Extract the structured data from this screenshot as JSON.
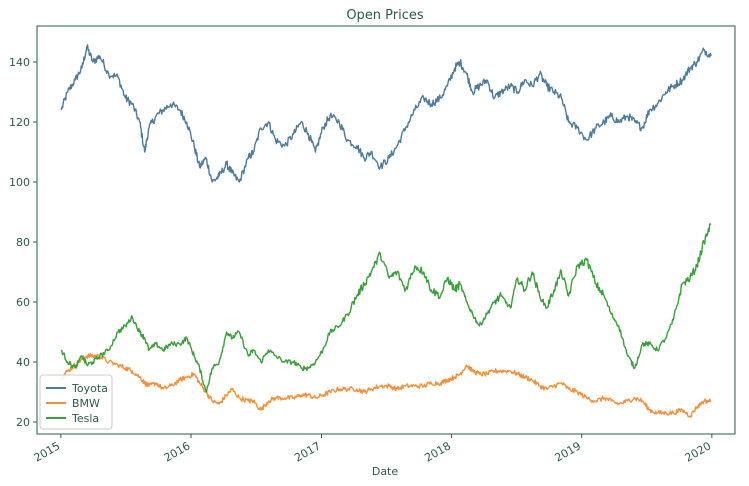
{
  "chart_data": {
    "type": "line",
    "title": "Open Prices",
    "xlabel": "Date",
    "ylabel": "",
    "xlim": [
      "2014-10-26",
      "2020-03-06"
    ],
    "ylim": [
      16,
      152
    ],
    "x_ticks": [
      "2015",
      "2016",
      "2017",
      "2018",
      "2019",
      "2020"
    ],
    "y_ticks": [
      20,
      40,
      60,
      80,
      100,
      120,
      140
    ],
    "grid": false,
    "legend_position": "lower-left",
    "text_color": "#2e5b4b",
    "series": [
      {
        "name": "Toyota",
        "color": "#4e7a9b",
        "x": [
          "2015-01-02",
          "2015-01-20",
          "2015-02-10",
          "2015-03-01",
          "2015-03-15",
          "2015-04-01",
          "2015-04-20",
          "2015-05-15",
          "2015-06-10",
          "2015-07-01",
          "2015-07-20",
          "2015-08-10",
          "2015-08-24",
          "2015-09-05",
          "2015-09-25",
          "2015-10-15",
          "2015-11-05",
          "2015-12-01",
          "2015-12-20",
          "2016-01-10",
          "2016-01-25",
          "2016-02-12",
          "2016-03-01",
          "2016-03-20",
          "2016-04-10",
          "2016-04-25",
          "2016-05-15",
          "2016-06-10",
          "2016-06-24",
          "2016-07-15",
          "2016-08-05",
          "2016-08-25",
          "2016-09-20",
          "2016-10-15",
          "2016-11-05",
          "2016-11-25",
          "2016-12-15",
          "2017-01-05",
          "2017-01-25",
          "2017-02-20",
          "2017-03-15",
          "2017-04-10",
          "2017-05-01",
          "2017-05-20",
          "2017-06-15",
          "2017-07-10",
          "2017-08-01",
          "2017-08-25",
          "2017-09-20",
          "2017-10-15",
          "2017-11-05",
          "2017-12-01",
          "2017-12-20",
          "2018-01-10",
          "2018-01-25",
          "2018-02-12",
          "2018-03-01",
          "2018-03-20",
          "2018-04-10",
          "2018-05-01",
          "2018-05-20",
          "2018-06-15",
          "2018-07-05",
          "2018-07-25",
          "2018-08-15",
          "2018-09-05",
          "2018-09-25",
          "2018-10-15",
          "2018-11-05",
          "2018-11-25",
          "2018-12-20",
          "2019-01-15",
          "2019-02-10",
          "2019-03-05",
          "2019-03-25",
          "2019-04-15",
          "2019-05-10",
          "2019-05-30",
          "2019-06-20",
          "2019-07-10",
          "2019-08-01",
          "2019-08-25",
          "2019-09-15",
          "2019-10-10",
          "2019-11-01",
          "2019-11-20",
          "2019-12-10",
          "2019-12-30"
        ],
        "values": [
          124,
          130,
          134,
          138,
          145,
          140,
          142,
          136,
          135,
          128,
          126,
          120,
          110,
          118,
          122,
          124,
          126,
          124,
          120,
          112,
          105,
          108,
          100,
          102,
          106,
          103,
          100,
          108,
          110,
          118,
          120,
          114,
          112,
          116,
          120,
          116,
          110,
          118,
          122,
          120,
          114,
          112,
          108,
          110,
          105,
          108,
          112,
          118,
          124,
          128,
          126,
          128,
          132,
          138,
          140,
          136,
          130,
          132,
          134,
          128,
          130,
          132,
          130,
          134,
          132,
          136,
          132,
          130,
          128,
          120,
          118,
          114,
          118,
          120,
          122,
          120,
          122,
          120,
          118,
          124,
          126,
          130,
          132,
          134,
          138,
          140,
          144,
          142
        ]
      },
      {
        "name": "BMW",
        "color": "#f0913d",
        "x": [
          "2015-01-02",
          "2015-01-20",
          "2015-02-10",
          "2015-03-01",
          "2015-03-15",
          "2015-04-01",
          "2015-04-20",
          "2015-05-15",
          "2015-06-10",
          "2015-07-01",
          "2015-07-20",
          "2015-08-10",
          "2015-08-24",
          "2015-09-05",
          "2015-09-25",
          "2015-10-15",
          "2015-11-05",
          "2015-12-01",
          "2015-12-20",
          "2016-01-10",
          "2016-01-25",
          "2016-02-12",
          "2016-03-01",
          "2016-03-20",
          "2016-04-10",
          "2016-04-25",
          "2016-05-15",
          "2016-06-10",
          "2016-06-24",
          "2016-07-15",
          "2016-08-05",
          "2016-08-25",
          "2016-09-20",
          "2016-10-15",
          "2016-11-05",
          "2016-11-25",
          "2016-12-15",
          "2017-01-05",
          "2017-01-25",
          "2017-02-20",
          "2017-03-15",
          "2017-04-10",
          "2017-05-01",
          "2017-05-20",
          "2017-06-15",
          "2017-07-10",
          "2017-08-01",
          "2017-08-25",
          "2017-09-20",
          "2017-10-15",
          "2017-11-05",
          "2017-12-01",
          "2017-12-20",
          "2018-01-10",
          "2018-01-25",
          "2018-02-12",
          "2018-03-01",
          "2018-03-20",
          "2018-04-10",
          "2018-05-01",
          "2018-05-20",
          "2018-06-15",
          "2018-07-05",
          "2018-07-25",
          "2018-08-15",
          "2018-09-05",
          "2018-09-25",
          "2018-10-15",
          "2018-11-05",
          "2018-11-25",
          "2018-12-20",
          "2019-01-15",
          "2019-02-10",
          "2019-03-05",
          "2019-03-25",
          "2019-04-15",
          "2019-05-10",
          "2019-05-30",
          "2019-06-20",
          "2019-07-10",
          "2019-08-01",
          "2019-08-25",
          "2019-09-15",
          "2019-10-10",
          "2019-11-01",
          "2019-11-20",
          "2019-12-10",
          "2019-12-30"
        ],
        "values": [
          35,
          37,
          39,
          41,
          42,
          42,
          42,
          40,
          39,
          38,
          37,
          35,
          33,
          32,
          33,
          31,
          32,
          34,
          35,
          36,
          33,
          30,
          27,
          26,
          29,
          31,
          28,
          27,
          27,
          24,
          27,
          28,
          28,
          28,
          29,
          29,
          28,
          29,
          30,
          31,
          31,
          31,
          30,
          31,
          32,
          32,
          31,
          32,
          32,
          32,
          33,
          33,
          34,
          35,
          36,
          39,
          37,
          36,
          36,
          37,
          37,
          37,
          36,
          35,
          34,
          32,
          31,
          32,
          33,
          31,
          30,
          28,
          27,
          28,
          27,
          26,
          27,
          28,
          27,
          24,
          23,
          23,
          23,
          24,
          22,
          25,
          27,
          27
        ]
      },
      {
        "name": "Tesla",
        "color": "#3a9e3a",
        "x": [
          "2015-01-02",
          "2015-01-20",
          "2015-02-10",
          "2015-03-01",
          "2015-03-15",
          "2015-04-01",
          "2015-04-20",
          "2015-05-15",
          "2015-06-10",
          "2015-07-01",
          "2015-07-20",
          "2015-08-10",
          "2015-08-24",
          "2015-09-05",
          "2015-09-25",
          "2015-10-15",
          "2015-11-05",
          "2015-12-01",
          "2015-12-20",
          "2016-01-10",
          "2016-01-25",
          "2016-02-12",
          "2016-03-01",
          "2016-03-20",
          "2016-04-10",
          "2016-04-25",
          "2016-05-15",
          "2016-06-10",
          "2016-06-24",
          "2016-07-15",
          "2016-08-05",
          "2016-08-25",
          "2016-09-20",
          "2016-10-15",
          "2016-11-05",
          "2016-11-25",
          "2016-12-15",
          "2017-01-05",
          "2017-01-25",
          "2017-02-20",
          "2017-03-15",
          "2017-04-10",
          "2017-05-01",
          "2017-05-20",
          "2017-06-15",
          "2017-07-10",
          "2017-08-01",
          "2017-08-25",
          "2017-09-20",
          "2017-10-15",
          "2017-11-05",
          "2017-12-01",
          "2017-12-20",
          "2018-01-10",
          "2018-01-25",
          "2018-02-12",
          "2018-03-01",
          "2018-03-20",
          "2018-04-10",
          "2018-05-01",
          "2018-05-20",
          "2018-06-15",
          "2018-07-05",
          "2018-07-25",
          "2018-08-15",
          "2018-09-05",
          "2018-09-25",
          "2018-10-15",
          "2018-11-05",
          "2018-11-25",
          "2018-12-20",
          "2019-01-15",
          "2019-02-10",
          "2019-03-05",
          "2019-03-25",
          "2019-04-15",
          "2019-05-10",
          "2019-05-30",
          "2019-06-20",
          "2019-07-10",
          "2019-08-01",
          "2019-08-25",
          "2019-09-15",
          "2019-10-10",
          "2019-11-01",
          "2019-11-20",
          "2019-12-10",
          "2019-12-30"
        ],
        "values": [
          44,
          40,
          38,
          42,
          39,
          40,
          42,
          44,
          50,
          52,
          55,
          50,
          48,
          44,
          46,
          44,
          46,
          46,
          48,
          42,
          38,
          30,
          38,
          40,
          50,
          48,
          50,
          42,
          44,
          40,
          44,
          42,
          40,
          40,
          38,
          38,
          40,
          44,
          50,
          52,
          56,
          62,
          66,
          70,
          76,
          68,
          70,
          64,
          72,
          70,
          64,
          62,
          68,
          64,
          66,
          60,
          56,
          52,
          56,
          60,
          62,
          58,
          68,
          64,
          70,
          62,
          58,
          64,
          70,
          62,
          72,
          74,
          66,
          62,
          56,
          52,
          42,
          38,
          46,
          46,
          44,
          48,
          54,
          66,
          68,
          72,
          80,
          86
        ]
      }
    ]
  }
}
